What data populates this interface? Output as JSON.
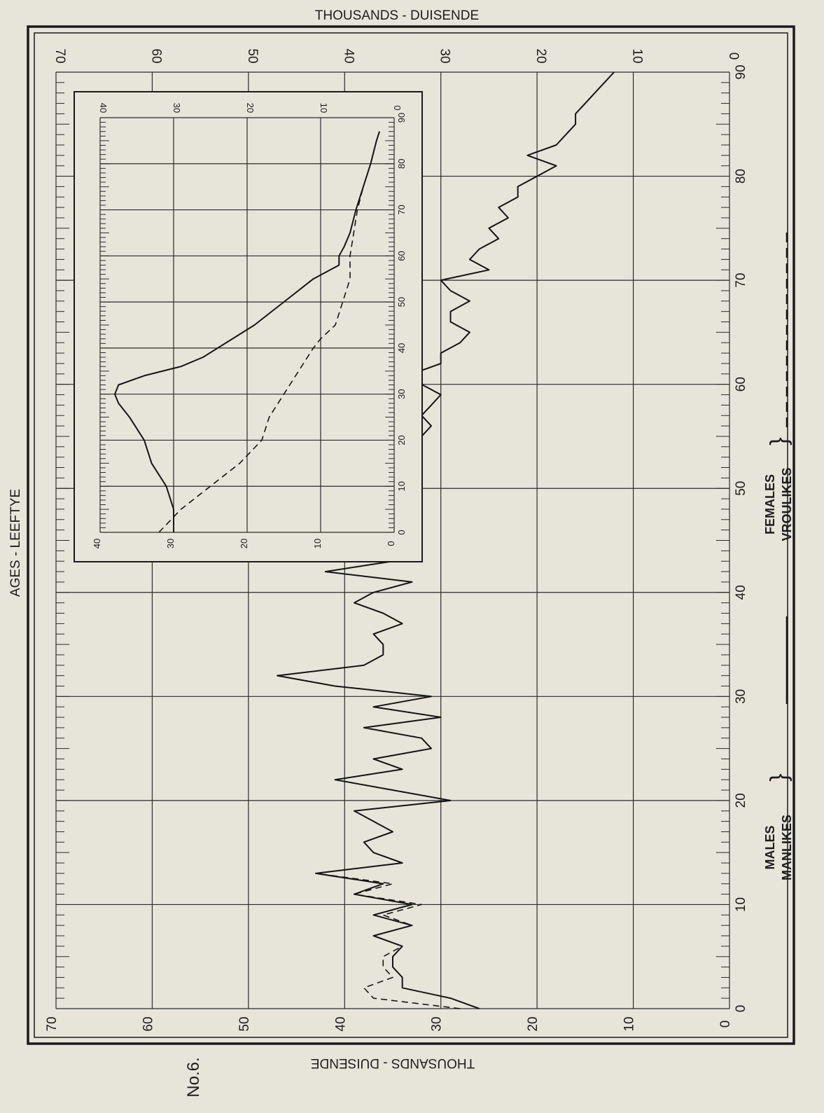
{
  "page": {
    "top_axis_label": "THOUSANDS - DUISENDE",
    "bottom_axis_label": "THOUSANDS - DUISENDE",
    "side_axis_label": "AGES - LEEFTYE",
    "plate_number": "No.6.",
    "legend": {
      "males_en": "MALES",
      "males_af": "MANLIKES",
      "females_en": "FEMALES",
      "females_af": "VROULIKES",
      "brace": "}"
    }
  },
  "chart_data": [
    {
      "type": "line",
      "title": "",
      "xlabel": "AGES - LEEFTYE",
      "ylabel": "THOUSANDS - DUISENDE",
      "xlim": [
        0,
        90
      ],
      "ylim": [
        0,
        70
      ],
      "xticks": [
        0,
        10,
        20,
        30,
        40,
        50,
        60,
        70,
        80,
        90
      ],
      "yticks": [
        0,
        10,
        20,
        30,
        40,
        50,
        60,
        70
      ],
      "grid": true,
      "legend": "bottom",
      "series": [
        {
          "name": "MALES MANLIKES",
          "style": "solid",
          "x": [
            0,
            1,
            2,
            3,
            4,
            5,
            6,
            7,
            8,
            9,
            10,
            11,
            12,
            13,
            14,
            15,
            16,
            17,
            18,
            19,
            20,
            21,
            22,
            23,
            24,
            25,
            26,
            27,
            28,
            29,
            30,
            31,
            32,
            33,
            34,
            35,
            36,
            37,
            38,
            39,
            40,
            41,
            42,
            43,
            44,
            45,
            46,
            47,
            48,
            49,
            50,
            51,
            52,
            53,
            54,
            55,
            56,
            57,
            58,
            59,
            60,
            61,
            62,
            63,
            64,
            65,
            66,
            67,
            68,
            69,
            70,
            71,
            72,
            73,
            74,
            75,
            76,
            77,
            78,
            79,
            80,
            81,
            82,
            83,
            84,
            85,
            86,
            87,
            88,
            89,
            90
          ],
          "y": [
            26,
            29,
            34,
            34,
            35,
            35,
            34,
            37,
            33,
            37,
            33,
            39,
            36,
            43,
            34,
            37,
            38,
            35,
            37,
            39,
            29,
            35,
            41,
            34,
            37,
            31,
            32,
            38,
            30,
            37,
            31,
            41,
            47,
            38,
            36,
            36,
            37,
            34,
            36,
            39,
            37,
            33,
            42,
            35,
            35,
            33,
            33,
            34,
            34,
            33,
            35,
            33,
            34,
            35,
            34,
            32,
            31,
            32,
            31,
            30,
            32,
            33,
            30,
            30,
            28,
            27,
            29,
            29,
            27,
            29,
            30,
            25,
            27,
            26,
            24,
            25,
            23,
            24,
            22,
            22,
            20,
            18,
            21,
            18,
            17,
            16,
            16,
            15,
            14,
            13,
            12
          ],
          "values_note_removed": true
        },
        {
          "name": "FEMALES VROULIKES",
          "style": "dashed",
          "x": [
            0,
            1,
            2,
            3,
            4,
            5,
            6,
            7,
            8,
            9,
            10,
            11,
            12,
            13,
            14,
            15,
            16,
            17,
            18,
            19,
            20,
            21,
            22,
            23,
            24,
            25,
            26,
            27,
            28,
            29,
            30,
            31,
            32,
            33,
            34,
            35,
            36,
            37,
            38,
            39,
            40,
            41,
            42,
            43,
            44,
            45,
            46,
            47,
            48,
            49,
            50,
            51,
            52,
            53,
            54,
            55,
            56,
            57,
            58,
            59,
            60,
            61,
            62,
            63,
            64,
            65,
            66,
            67,
            68,
            69,
            70,
            71,
            72,
            73,
            74,
            75,
            76,
            77,
            78,
            79,
            80,
            81,
            82,
            83,
            84,
            85,
            86,
            87,
            88,
            89,
            90
          ],
          "y": [
            28,
            37,
            38,
            35,
            36,
            36,
            34,
            37,
            33,
            36,
            32,
            39,
            35,
            43,
            34,
            37,
            38,
            35,
            37,
            39,
            29,
            35,
            41,
            34,
            37,
            31,
            32,
            38,
            30,
            37,
            31,
            41,
            47,
            38,
            36,
            36,
            37,
            34,
            36,
            39,
            37,
            33,
            42,
            35,
            35,
            33,
            33,
            34,
            34,
            33,
            35,
            33,
            34,
            35,
            34,
            32,
            31,
            32,
            31,
            30,
            32,
            33,
            30,
            30,
            28,
            27,
            29,
            29,
            27,
            29,
            30,
            25,
            27,
            26,
            24,
            25,
            23,
            24,
            22,
            22,
            20,
            18,
            21,
            18,
            17,
            16,
            16,
            15,
            14,
            13,
            12
          ]
        }
      ]
    },
    {
      "type": "line",
      "title": "",
      "xlim": [
        0,
        90
      ],
      "ylim": [
        0,
        40
      ],
      "xticks": [
        0,
        10,
        20,
        30,
        40,
        50,
        60,
        70,
        80,
        90
      ],
      "yticks": [
        0,
        10,
        20,
        30,
        40
      ],
      "grid": true,
      "legend": "none",
      "series": [
        {
          "style": "solid",
          "x": [
            0,
            5,
            10,
            15,
            20,
            25,
            28,
            30,
            32,
            34,
            36,
            38,
            40,
            45,
            50,
            55,
            58,
            60,
            62,
            65,
            70,
            75,
            80,
            85,
            87
          ],
          "y": [
            30,
            30,
            31,
            33,
            34,
            36,
            37.5,
            38,
            37.5,
            34,
            29,
            26,
            24,
            19,
            15,
            11,
            7.5,
            7.5,
            6.8,
            6,
            5.2,
            4.2,
            3.2,
            2.4,
            2
          ]
        },
        {
          "style": "dashed",
          "x": [
            0,
            5,
            10,
            15,
            20,
            25,
            30,
            35,
            40,
            42,
            45,
            50,
            55,
            60,
            65,
            70,
            75,
            80,
            85,
            87
          ],
          "y": [
            32,
            29,
            25,
            21,
            18,
            17,
            15,
            13,
            11,
            10,
            8,
            7,
            6,
            6,
            5.5,
            5,
            4.2,
            3.2,
            2.4,
            2
          ]
        }
      ]
    }
  ]
}
